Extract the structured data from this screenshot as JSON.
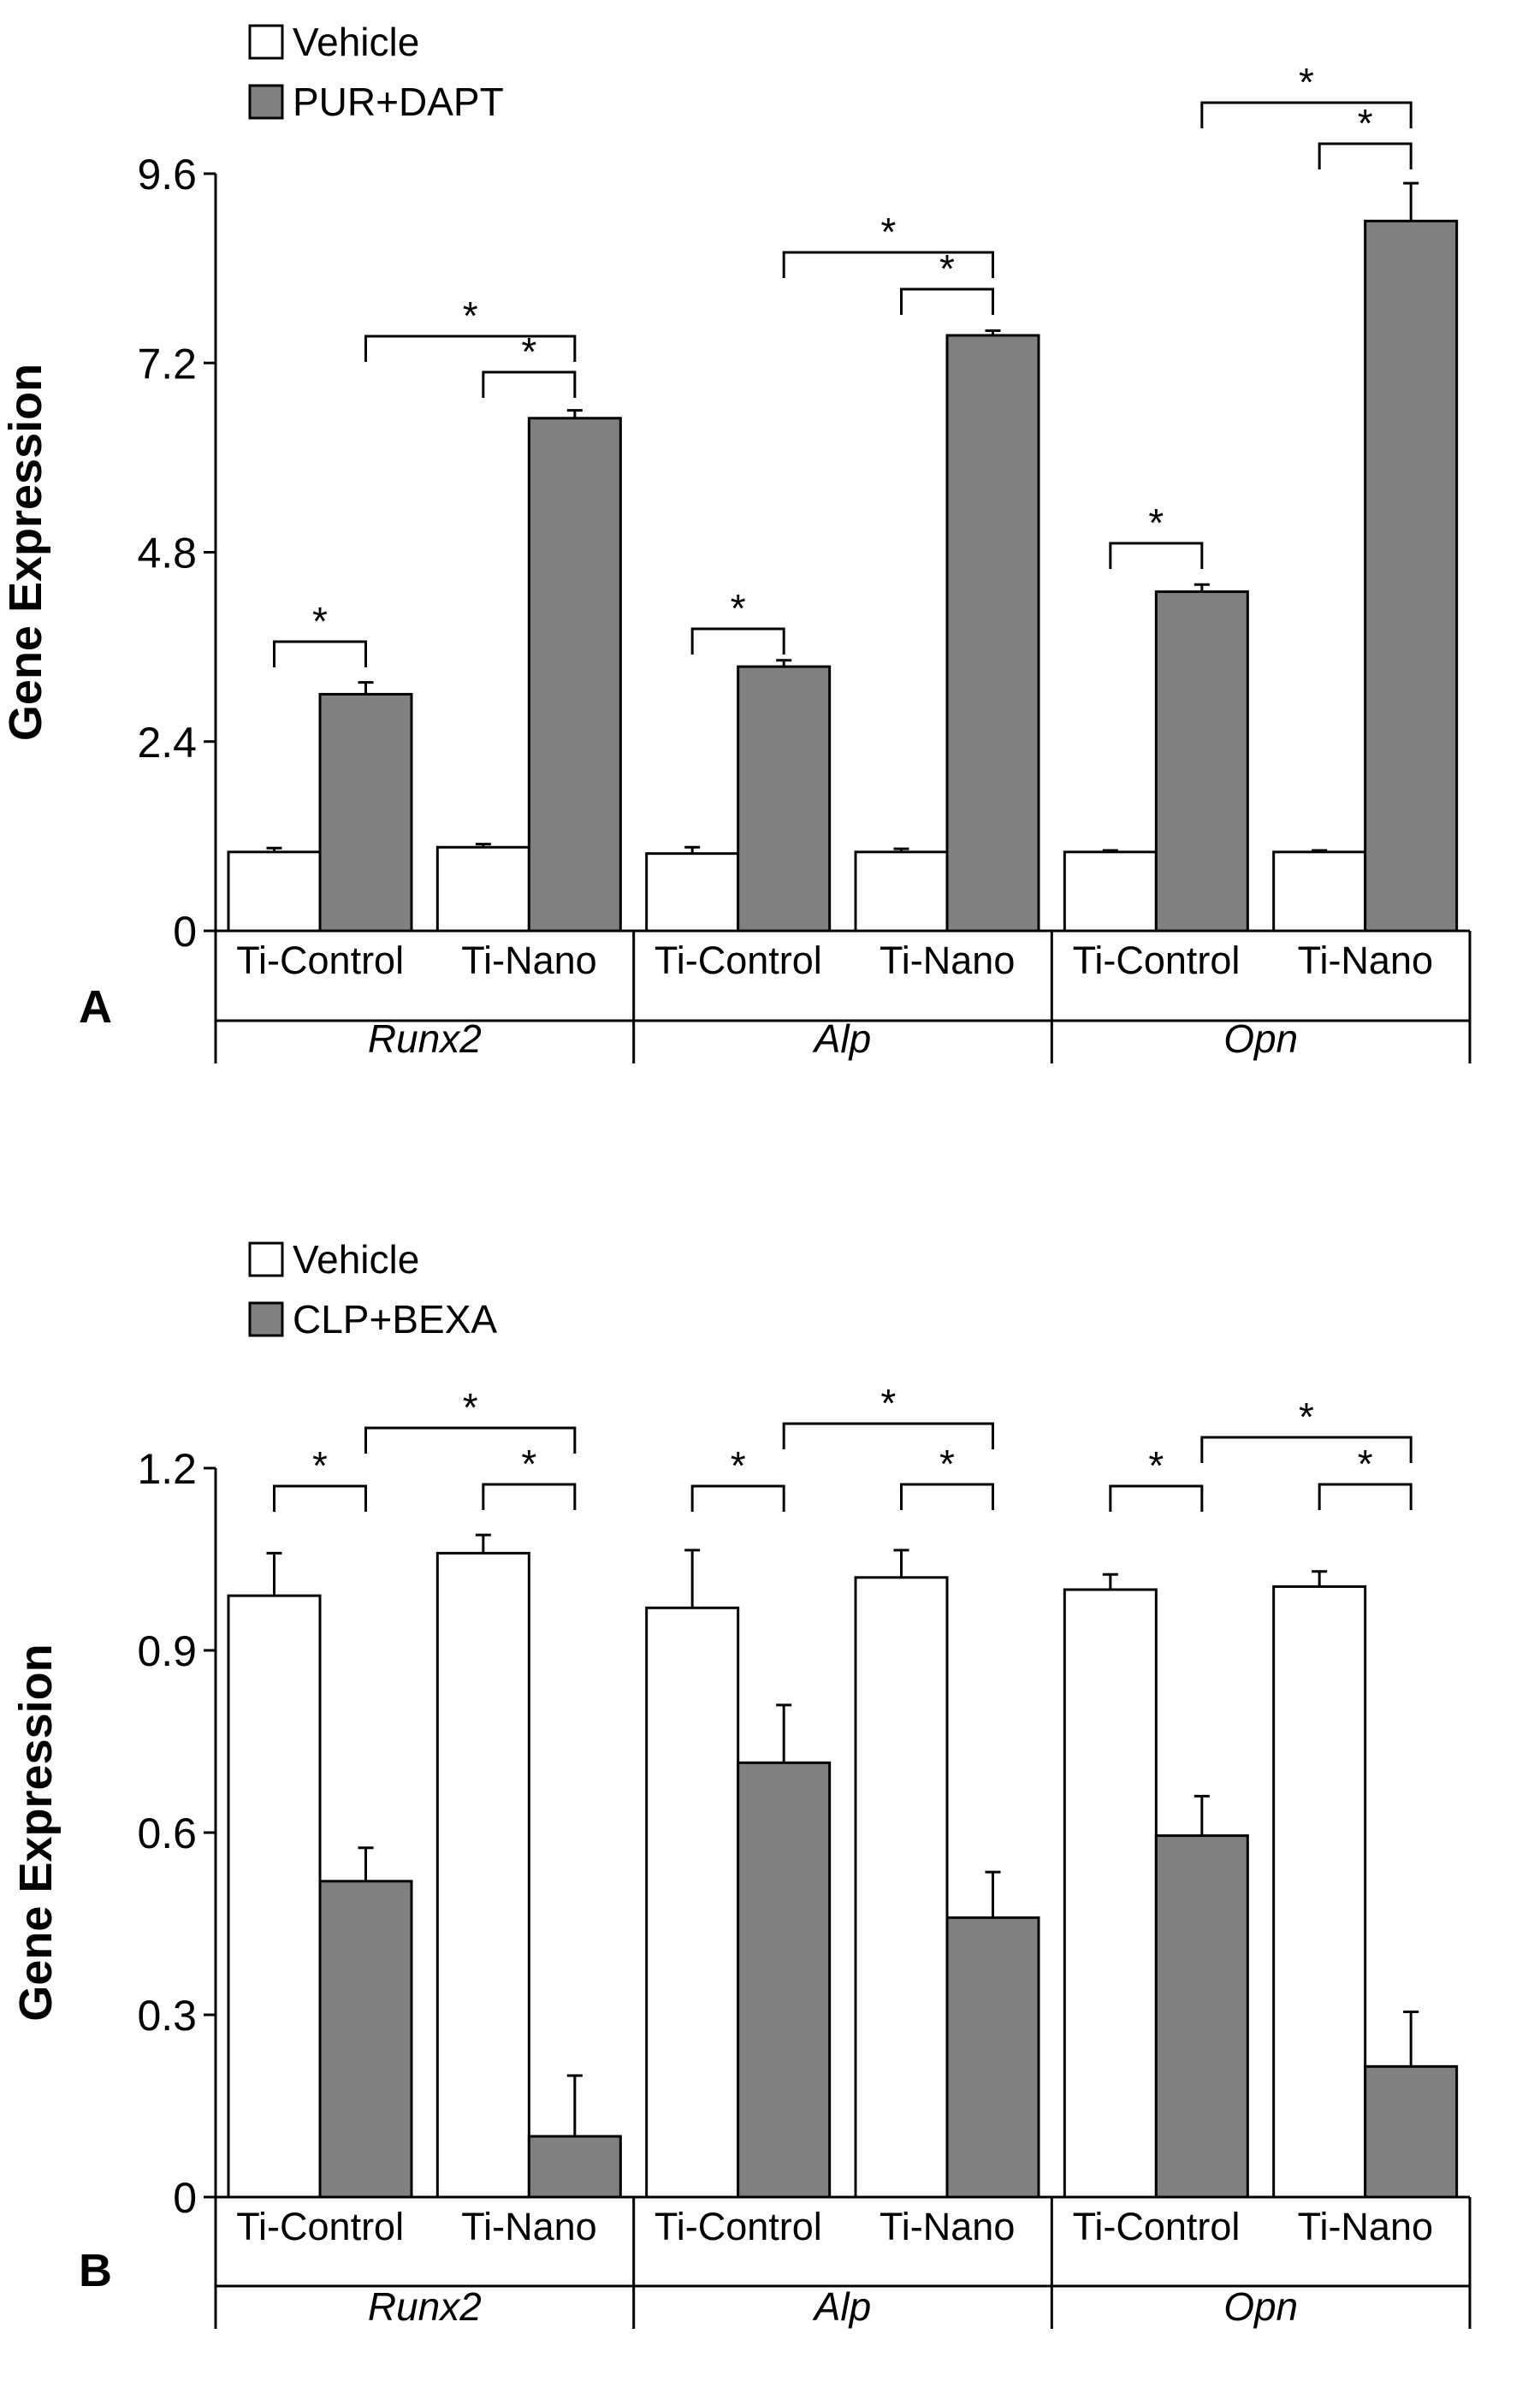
{
  "colors": {
    "vehicle": "#ffffff",
    "treatment": "#808080",
    "outline": "#000000"
  },
  "chart_data": [
    {
      "type": "bar",
      "panel_label": "A",
      "ylabel": "Gene Expression",
      "ylim": [
        0,
        9.6
      ],
      "yticks": [
        0,
        2.4,
        4.8,
        7.2,
        9.6
      ],
      "ytick_labels": [
        "0",
        "2.4",
        "4.8",
        "7.2",
        "9.6"
      ],
      "grid": false,
      "legend": [
        "Vehicle",
        "PUR+DAPT"
      ],
      "legend_position": "top-left",
      "genes": [
        "Runx2",
        "Alp",
        "Opn"
      ],
      "categories": [
        "Ti-Control",
        "Ti-Nano",
        "Ti-Control",
        "Ti-Nano",
        "Ti-Control",
        "Ti-Nano"
      ],
      "series": [
        {
          "name": "Vehicle",
          "values": [
            1.0,
            1.06,
            0.98,
            1.0,
            1.0,
            1.0
          ],
          "errors": [
            0.05,
            0.04,
            0.08,
            0.04,
            0.02,
            0.02
          ]
        },
        {
          "name": "PUR+DAPT",
          "values": [
            3.0,
            6.5,
            3.35,
            7.55,
            4.3,
            9.0
          ],
          "errors": [
            0.15,
            0.1,
            0.08,
            0.06,
            0.09,
            0.48
          ]
        }
      ],
      "significance": [
        {
          "from": 0,
          "to": 1,
          "label": "*"
        },
        {
          "from": 1,
          "to": 3,
          "label": "*"
        },
        {
          "from": 2,
          "to": 3,
          "label": "*"
        },
        {
          "from": 4,
          "to": 5,
          "label": "*"
        },
        {
          "from": 5,
          "to": 7,
          "label": "*"
        },
        {
          "from": 6,
          "to": 7,
          "label": "*"
        },
        {
          "from": 8,
          "to": 9,
          "label": "*"
        },
        {
          "from": 9,
          "to": 11,
          "label": "*"
        },
        {
          "from": 10,
          "to": 11,
          "label": "*"
        }
      ]
    },
    {
      "type": "bar",
      "panel_label": "B",
      "ylabel": "Gene Expression",
      "ylim": [
        0,
        1.2
      ],
      "yticks": [
        0,
        0.3,
        0.6,
        0.9,
        1.2
      ],
      "ytick_labels": [
        "0",
        "0.3",
        "0.6",
        "0.9",
        "1.2"
      ],
      "grid": false,
      "legend": [
        "Vehicle",
        "CLP+BEXA"
      ],
      "legend_position": "top-left",
      "genes": [
        "Runx2",
        "Alp",
        "Opn"
      ],
      "categories": [
        "Ti-Control",
        "Ti-Nano",
        "Ti-Control",
        "Ti-Nano",
        "Ti-Control",
        "Ti-Nano"
      ],
      "series": [
        {
          "name": "Vehicle",
          "values": [
            0.99,
            1.06,
            0.97,
            1.02,
            1.0,
            1.005
          ],
          "errors": [
            0.07,
            0.03,
            0.095,
            0.045,
            0.025,
            0.025
          ]
        },
        {
          "name": "CLP+BEXA",
          "values": [
            0.52,
            0.1,
            0.715,
            0.46,
            0.595,
            0.215
          ],
          "errors": [
            0.055,
            0.1,
            0.095,
            0.075,
            0.065,
            0.09
          ]
        }
      ],
      "significance": [
        {
          "from": 0,
          "to": 1,
          "label": "*"
        },
        {
          "from": 1,
          "to": 3,
          "label": "*"
        },
        {
          "from": 2,
          "to": 3,
          "label": "*"
        },
        {
          "from": 4,
          "to": 5,
          "label": "*"
        },
        {
          "from": 5,
          "to": 7,
          "label": "*"
        },
        {
          "from": 6,
          "to": 7,
          "label": "*"
        },
        {
          "from": 8,
          "to": 9,
          "label": "*"
        },
        {
          "from": 9,
          "to": 11,
          "label": "*"
        },
        {
          "from": 10,
          "to": 11,
          "label": "*"
        }
      ]
    }
  ]
}
